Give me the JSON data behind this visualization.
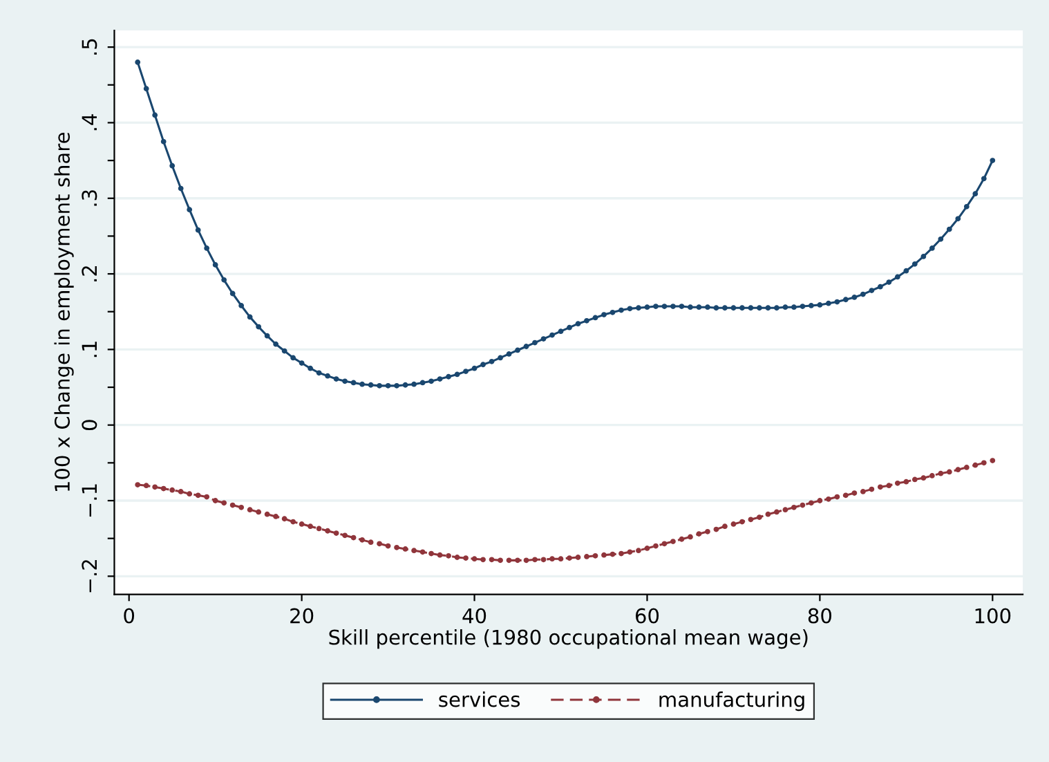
{
  "chart_data": {
    "type": "line",
    "xlabel": "Skill percentile (1980 occupational mean wage)",
    "ylabel": "100 x Change in employment share",
    "x": [
      1,
      2,
      3,
      4,
      5,
      6,
      7,
      8,
      9,
      10,
      11,
      12,
      13,
      14,
      15,
      16,
      17,
      18,
      19,
      20,
      21,
      22,
      23,
      24,
      25,
      26,
      27,
      28,
      29,
      30,
      31,
      32,
      33,
      34,
      35,
      36,
      37,
      38,
      39,
      40,
      41,
      42,
      43,
      44,
      45,
      46,
      47,
      48,
      49,
      50,
      51,
      52,
      53,
      54,
      55,
      56,
      57,
      58,
      59,
      60,
      61,
      62,
      63,
      64,
      65,
      66,
      67,
      68,
      69,
      70,
      71,
      72,
      73,
      74,
      75,
      76,
      77,
      78,
      79,
      80,
      81,
      82,
      83,
      84,
      85,
      86,
      87,
      88,
      89,
      90,
      91,
      92,
      93,
      94,
      95,
      96,
      97,
      98,
      99,
      100
    ],
    "series": [
      {
        "name": "services",
        "color": "#1a476f",
        "line_style": "solid",
        "values": [
          0.48,
          0.445,
          0.41,
          0.375,
          0.343,
          0.313,
          0.285,
          0.258,
          0.234,
          0.212,
          0.192,
          0.174,
          0.158,
          0.143,
          0.13,
          0.118,
          0.107,
          0.098,
          0.089,
          0.082,
          0.075,
          0.069,
          0.065,
          0.061,
          0.058,
          0.056,
          0.054,
          0.053,
          0.052,
          0.052,
          0.052,
          0.053,
          0.054,
          0.056,
          0.058,
          0.061,
          0.064,
          0.067,
          0.071,
          0.075,
          0.08,
          0.084,
          0.089,
          0.094,
          0.099,
          0.104,
          0.109,
          0.114,
          0.119,
          0.124,
          0.129,
          0.134,
          0.138,
          0.142,
          0.146,
          0.149,
          0.152,
          0.154,
          0.155,
          0.156,
          0.157,
          0.157,
          0.157,
          0.157,
          0.156,
          0.156,
          0.156,
          0.155,
          0.155,
          0.155,
          0.155,
          0.155,
          0.155,
          0.155,
          0.155,
          0.156,
          0.156,
          0.157,
          0.158,
          0.159,
          0.161,
          0.163,
          0.166,
          0.169,
          0.173,
          0.178,
          0.183,
          0.189,
          0.196,
          0.204,
          0.213,
          0.223,
          0.234,
          0.246,
          0.259,
          0.273,
          0.289,
          0.306,
          0.326,
          0.35
        ]
      },
      {
        "name": "manufacturing",
        "color": "#90353b",
        "line_style": "dashed",
        "values": [
          -0.079,
          -0.08,
          -0.082,
          -0.084,
          -0.086,
          -0.088,
          -0.091,
          -0.093,
          -0.095,
          -0.1,
          -0.103,
          -0.106,
          -0.109,
          -0.112,
          -0.115,
          -0.118,
          -0.121,
          -0.124,
          -0.128,
          -0.131,
          -0.134,
          -0.137,
          -0.14,
          -0.143,
          -0.146,
          -0.149,
          -0.152,
          -0.155,
          -0.157,
          -0.16,
          -0.162,
          -0.164,
          -0.166,
          -0.168,
          -0.17,
          -0.172,
          -0.173,
          -0.175,
          -0.176,
          -0.177,
          -0.178,
          -0.178,
          -0.179,
          -0.179,
          -0.179,
          -0.179,
          -0.178,
          -0.178,
          -0.177,
          -0.177,
          -0.176,
          -0.175,
          -0.174,
          -0.173,
          -0.172,
          -0.171,
          -0.17,
          -0.168,
          -0.166,
          -0.163,
          -0.16,
          -0.157,
          -0.154,
          -0.151,
          -0.148,
          -0.144,
          -0.141,
          -0.138,
          -0.134,
          -0.131,
          -0.128,
          -0.125,
          -0.122,
          -0.118,
          -0.115,
          -0.112,
          -0.109,
          -0.106,
          -0.103,
          -0.1,
          -0.098,
          -0.095,
          -0.093,
          -0.09,
          -0.088,
          -0.085,
          -0.082,
          -0.08,
          -0.077,
          -0.075,
          -0.072,
          -0.07,
          -0.067,
          -0.064,
          -0.062,
          -0.059,
          -0.056,
          -0.053,
          -0.05,
          -0.047
        ]
      }
    ],
    "xlim": [
      -1.7,
      103.5
    ],
    "xticks": [
      0,
      20,
      40,
      60,
      80,
      100
    ],
    "ylim": [
      -0.224,
      0.522
    ],
    "yticks": [
      {
        "value": -0.2,
        "label": "−.2"
      },
      {
        "value": -0.15,
        "label": null
      },
      {
        "value": -0.1,
        "label": "−.1"
      },
      {
        "value": -0.05,
        "label": null
      },
      {
        "value": 0,
        "label": "0"
      },
      {
        "value": 0.05,
        "label": null
      },
      {
        "value": 0.1,
        "label": ".1"
      },
      {
        "value": 0.15,
        "label": null
      },
      {
        "value": 0.2,
        "label": ".2"
      },
      {
        "value": 0.25,
        "label": null
      },
      {
        "value": 0.3,
        "label": ".3"
      },
      {
        "value": 0.35,
        "label": null
      },
      {
        "value": 0.4,
        "label": ".4"
      },
      {
        "value": 0.45,
        "label": null
      },
      {
        "value": 0.5,
        "label": ".5"
      }
    ],
    "grid": "y",
    "legend": "bottom",
    "marker": "circle"
  }
}
